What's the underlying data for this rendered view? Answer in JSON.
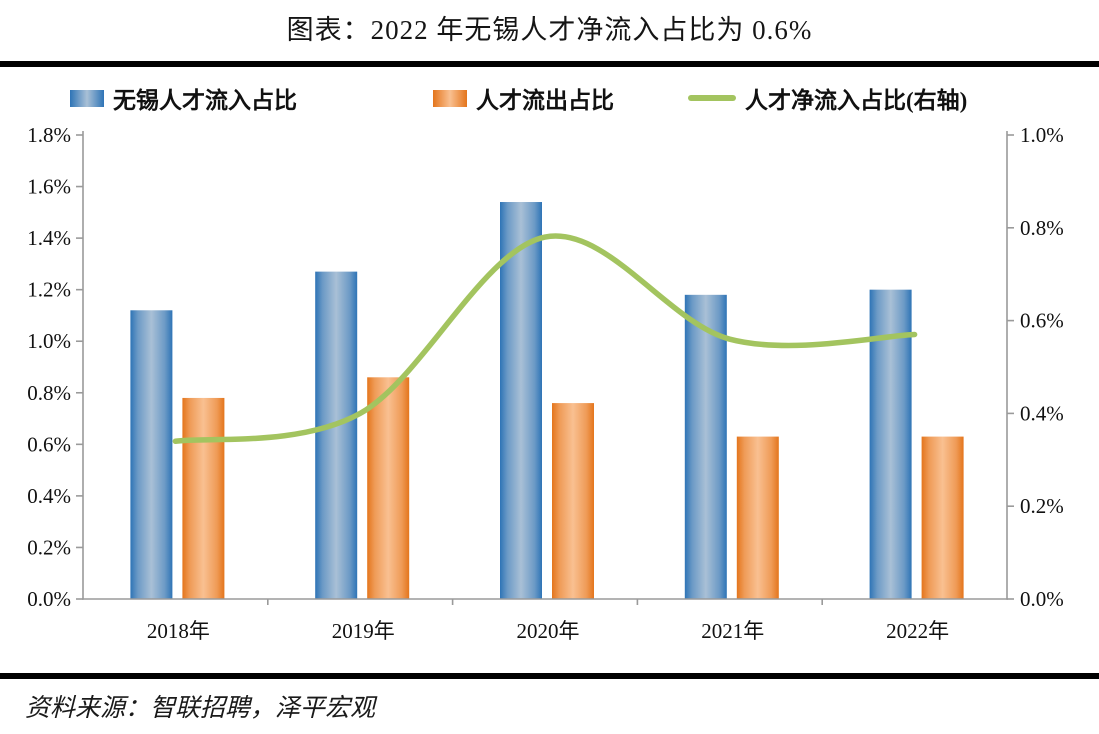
{
  "title": "图表：2022 年无锡人才净流入占比为 0.6%",
  "source": "资料来源：智联招聘，泽平宏观",
  "legend": [
    {
      "label": "无锡人才流入占比",
      "type": "bar",
      "color": "#2e74b6",
      "color_light": "#a9c0d6"
    },
    {
      "label": "人才流出占比",
      "type": "bar",
      "color": "#e4751c",
      "color_light": "#f9c091"
    },
    {
      "label": "人才净流入占比(右轴)",
      "type": "line",
      "color": "#a3c45f"
    }
  ],
  "colors": {
    "axis": "#9a9a9a",
    "divider": "#000000",
    "bar_inflow_edge": "#2e74b6",
    "bar_inflow_center": "#a9c0d6",
    "bar_outflow_edge": "#e4751c",
    "bar_outflow_center": "#f9c091",
    "net_line": "#a3c45f",
    "tick_text": "#111111"
  },
  "chart_data": {
    "type": "bar",
    "subtype": "bar+line combo",
    "title": "图表：2022 年无锡人才净流入占比为 0.6%",
    "categories": [
      "2018年",
      "2019年",
      "2020年",
      "2021年",
      "2022年"
    ],
    "series": [
      {
        "name": "无锡人才流入占比",
        "type": "bar",
        "axis": "left",
        "unit": "%",
        "values": [
          1.12,
          1.27,
          1.54,
          1.18,
          1.2
        ]
      },
      {
        "name": "人才流出占比",
        "type": "bar",
        "axis": "left",
        "unit": "%",
        "values": [
          0.78,
          0.86,
          0.76,
          0.63,
          0.63
        ]
      },
      {
        "name": "人才净流入占比(右轴)",
        "type": "line",
        "axis": "right",
        "unit": "%",
        "values": [
          0.34,
          0.4,
          0.78,
          0.56,
          0.57
        ]
      }
    ],
    "left_axis": {
      "min": 0,
      "max": 1.8,
      "step": 0.2,
      "tick_labels": [
        "0.0%",
        "0.2%",
        "0.4%",
        "0.6%",
        "0.8%",
        "1.0%",
        "1.2%",
        "1.4%",
        "1.6%",
        "1.8%"
      ]
    },
    "right_axis": {
      "min": 0,
      "max": 1.0,
      "step": 0.2,
      "tick_labels": [
        "0.0%",
        "0.2%",
        "0.4%",
        "0.6%",
        "0.8%",
        "1.0%"
      ]
    },
    "grid": false,
    "legend_position": "top",
    "smooth_line": true
  }
}
